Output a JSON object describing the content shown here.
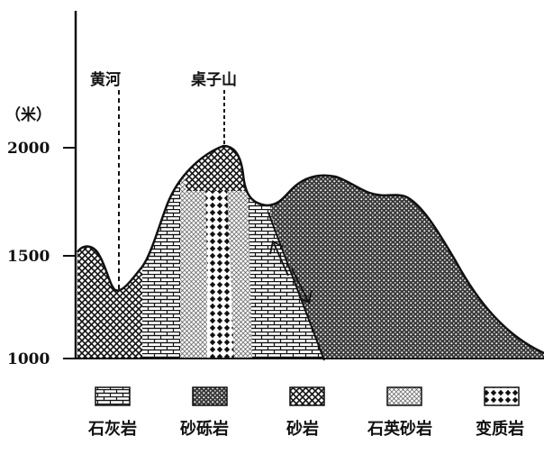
{
  "axis": {
    "unit": "（米）",
    "ticks": [
      {
        "value": 2000,
        "label": "2000"
      },
      {
        "value": 1500,
        "label": "1500"
      },
      {
        "value": 1000,
        "label": "1000"
      }
    ]
  },
  "markers": {
    "huanghe": "黄河",
    "zhuozishan": "桌子山"
  },
  "legend": [
    {
      "key": "limestone",
      "label": "石灰岩",
      "pattern": "brick-pattern"
    },
    {
      "key": "conglomerate",
      "label": "砂砾岩",
      "pattern": "dense-dot-pattern"
    },
    {
      "key": "sandstone",
      "label": "砂岩",
      "pattern": "cross-hatch-pattern"
    },
    {
      "key": "quartz-sandstone",
      "label": "石英砂岩",
      "pattern": "fine-mesh-pattern"
    },
    {
      "key": "metamorphic",
      "label": "变质岩",
      "pattern": "diamond-pattern"
    }
  ],
  "colors": {
    "ink": "#111111",
    "background": "#ffffff"
  }
}
